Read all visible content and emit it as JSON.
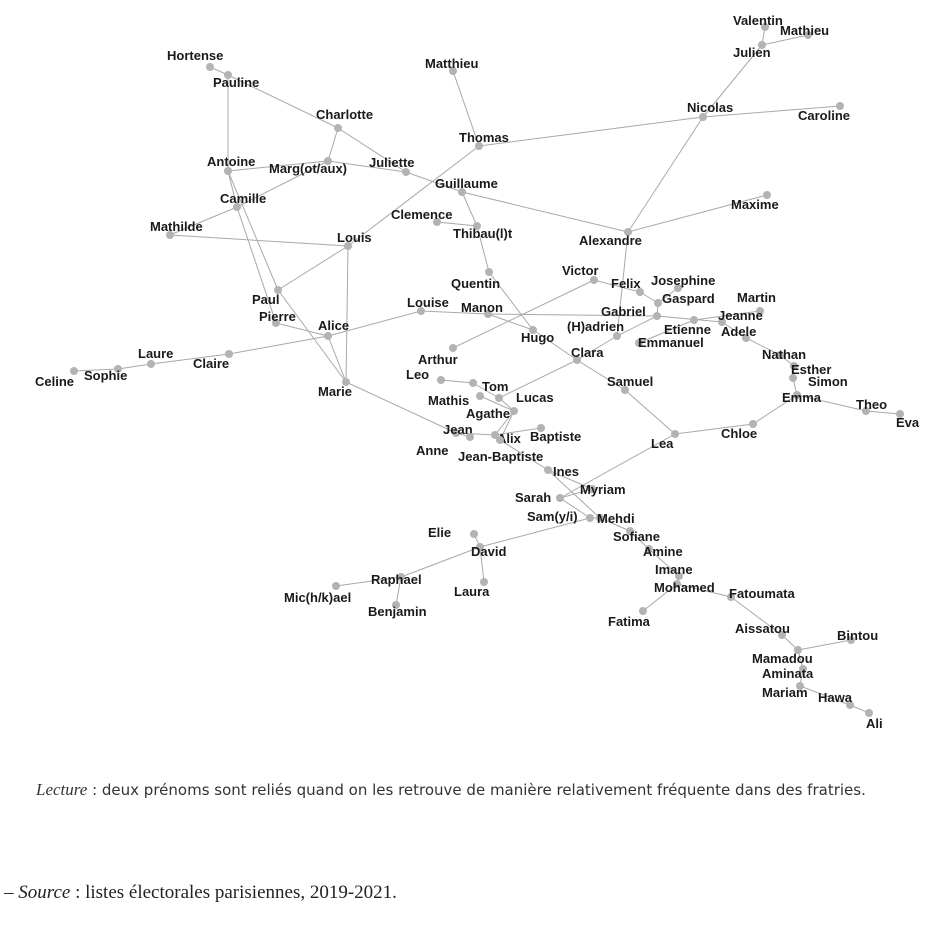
{
  "nodes": [
    {
      "id": "Valentin",
      "label": "Valentin"
    },
    {
      "id": "Mathieu",
      "label": "Mathieu"
    },
    {
      "id": "Julien",
      "label": "Julien"
    },
    {
      "id": "Nicolas",
      "label": "Nicolas"
    },
    {
      "id": "Caroline",
      "label": "Caroline"
    },
    {
      "id": "Hortense",
      "label": "Hortense"
    },
    {
      "id": "Pauline",
      "label": "Pauline"
    },
    {
      "id": "Matthieu",
      "label": "Matthieu"
    },
    {
      "id": "Charlotte",
      "label": "Charlotte"
    },
    {
      "id": "Thomas",
      "label": "Thomas"
    },
    {
      "id": "Antoine",
      "label": "Antoine"
    },
    {
      "id": "Margot",
      "label": "Marg(ot/aux)"
    },
    {
      "id": "Juliette",
      "label": "Juliette"
    },
    {
      "id": "Guillaume",
      "label": "Guillaume"
    },
    {
      "id": "Camille",
      "label": "Camille"
    },
    {
      "id": "Maxime",
      "label": "Maxime"
    },
    {
      "id": "Mathilde",
      "label": "Mathilde"
    },
    {
      "id": "Clemence",
      "label": "Clemence"
    },
    {
      "id": "Louis",
      "label": "Louis"
    },
    {
      "id": "Thibault",
      "label": "Thibau(l)t"
    },
    {
      "id": "Alexandre",
      "label": "Alexandre"
    },
    {
      "id": "Quentin",
      "label": "Quentin"
    },
    {
      "id": "Victor",
      "label": "Victor"
    },
    {
      "id": "Felix",
      "label": "Felix"
    },
    {
      "id": "Josephine",
      "label": "Josephine"
    },
    {
      "id": "Gaspard",
      "label": "Gaspard"
    },
    {
      "id": "Martin",
      "label": "Martin"
    },
    {
      "id": "Paul",
      "label": "Paul"
    },
    {
      "id": "Louise",
      "label": "Louise"
    },
    {
      "id": "Manon",
      "label": "Manon"
    },
    {
      "id": "Gabriel",
      "label": "Gabriel"
    },
    {
      "id": "Jeanne",
      "label": "Jeanne"
    },
    {
      "id": "Pierre",
      "label": "Pierre"
    },
    {
      "id": "Alice",
      "label": "Alice"
    },
    {
      "id": "Etienne",
      "label": "Etienne"
    },
    {
      "id": "Adele",
      "label": "Adele"
    },
    {
      "id": "Hugo",
      "label": "Hugo"
    },
    {
      "id": "Hadrien",
      "label": "(H)adrien"
    },
    {
      "id": "Emmanuel",
      "label": "Emmanuel"
    },
    {
      "id": "Clara",
      "label": "Clara"
    },
    {
      "id": "Nathan",
      "label": "Nathan"
    },
    {
      "id": "Arthur",
      "label": "Arthur"
    },
    {
      "id": "Laure",
      "label": "Laure"
    },
    {
      "id": "Claire",
      "label": "Claire"
    },
    {
      "id": "Sophie",
      "label": "Sophie"
    },
    {
      "id": "Celine",
      "label": "Celine"
    },
    {
      "id": "Esther",
      "label": "Esther"
    },
    {
      "id": "Simon",
      "label": "Simon"
    },
    {
      "id": "Leo",
      "label": "Leo"
    },
    {
      "id": "Tom",
      "label": "Tom"
    },
    {
      "id": "Samuel",
      "label": "Samuel"
    },
    {
      "id": "Marie",
      "label": "Marie"
    },
    {
      "id": "Mathis",
      "label": "Mathis"
    },
    {
      "id": "Lucas",
      "label": "Lucas"
    },
    {
      "id": "Emma",
      "label": "Emma"
    },
    {
      "id": "Theo",
      "label": "Theo"
    },
    {
      "id": "Agathe",
      "label": "Agathe"
    },
    {
      "id": "Eva",
      "label": "Eva"
    },
    {
      "id": "Jean",
      "label": "Jean"
    },
    {
      "id": "Alix",
      "label": "Alix"
    },
    {
      "id": "Baptiste",
      "label": "Baptiste"
    },
    {
      "id": "Chloe",
      "label": "Chloe"
    },
    {
      "id": "Lea",
      "label": "Lea"
    },
    {
      "id": "Anne",
      "label": "Anne"
    },
    {
      "id": "JeanBaptiste",
      "label": "Jean-Baptiste"
    },
    {
      "id": "Ines",
      "label": "Ines"
    },
    {
      "id": "Myriam",
      "label": "Myriam"
    },
    {
      "id": "Sarah",
      "label": "Sarah"
    },
    {
      "id": "Samy",
      "label": "Sam(y/i)"
    },
    {
      "id": "Mehdi",
      "label": "Mehdi"
    },
    {
      "id": "Elie",
      "label": "Elie"
    },
    {
      "id": "Sofiane",
      "label": "Sofiane"
    },
    {
      "id": "David",
      "label": "David"
    },
    {
      "id": "Amine",
      "label": "Amine"
    },
    {
      "id": "Imane",
      "label": "Imane"
    },
    {
      "id": "Raphael",
      "label": "Raphael"
    },
    {
      "id": "Mohamed",
      "label": "Mohamed"
    },
    {
      "id": "Fatoumata",
      "label": "Fatoumata"
    },
    {
      "id": "Laura",
      "label": "Laura"
    },
    {
      "id": "Michael",
      "label": "Mic(h/k)ael"
    },
    {
      "id": "Benjamin",
      "label": "Benjamin"
    },
    {
      "id": "Fatima",
      "label": "Fatima"
    },
    {
      "id": "Aissatou",
      "label": "Aissatou"
    },
    {
      "id": "Bintou",
      "label": "Bintou"
    },
    {
      "id": "Mamadou",
      "label": "Mamadou"
    },
    {
      "id": "Aminata",
      "label": "Aminata"
    },
    {
      "id": "Mariam",
      "label": "Mariam"
    },
    {
      "id": "Hawa",
      "label": "Hawa"
    },
    {
      "id": "Ali",
      "label": "Ali"
    }
  ],
  "edges": [
    [
      "Valentin",
      "Julien"
    ],
    [
      "Mathieu",
      "Julien"
    ],
    [
      "Julien",
      "Nicolas"
    ],
    [
      "Nicolas",
      "Caroline"
    ],
    [
      "Nicolas",
      "Thomas"
    ],
    [
      "Nicolas",
      "Alexandre"
    ],
    [
      "Hortense",
      "Pauline"
    ],
    [
      "Pauline",
      "Charlotte"
    ],
    [
      "Pauline",
      "Antoine"
    ],
    [
      "Charlotte",
      "Margot"
    ],
    [
      "Charlotte",
      "Juliette"
    ],
    [
      "Matthieu",
      "Thomas"
    ],
    [
      "Thomas",
      "Louis"
    ],
    [
      "Antoine",
      "Margot"
    ],
    [
      "Antoine",
      "Camille"
    ],
    [
      "Antoine",
      "Paul"
    ],
    [
      "Margot",
      "Juliette"
    ],
    [
      "Margot",
      "Camille"
    ],
    [
      "Juliette",
      "Guillaume"
    ],
    [
      "Guillaume",
      "Alexandre"
    ],
    [
      "Guillaume",
      "Thibault"
    ],
    [
      "Camille",
      "Pierre"
    ],
    [
      "Camille",
      "Mathilde"
    ],
    [
      "Mathilde",
      "Louis"
    ],
    [
      "Clemence",
      "Thibault"
    ],
    [
      "Thibault",
      "Quentin"
    ],
    [
      "Maxime",
      "Alexandre"
    ],
    [
      "Alexandre",
      "Hadrien"
    ],
    [
      "Louis",
      "Paul"
    ],
    [
      "Louis",
      "Marie"
    ],
    [
      "Quentin",
      "Hugo"
    ],
    [
      "Victor",
      "Felix"
    ],
    [
      "Victor",
      "Arthur"
    ],
    [
      "Felix",
      "Gaspard"
    ],
    [
      "Josephine",
      "Gaspard"
    ],
    [
      "Gaspard",
      "Gabriel"
    ],
    [
      "Martin",
      "Etienne"
    ],
    [
      "Paul",
      "Marie"
    ],
    [
      "Louise",
      "Manon"
    ],
    [
      "Louise",
      "Alice"
    ],
    [
      "Manon",
      "Hugo"
    ],
    [
      "Manon",
      "Gabriel"
    ],
    [
      "Gabriel",
      "Hadrien"
    ],
    [
      "Gabriel",
      "Jeanne"
    ],
    [
      "Jeanne",
      "Adele"
    ],
    [
      "Pierre",
      "Alice"
    ],
    [
      "Alice",
      "Claire"
    ],
    [
      "Alice",
      "Marie"
    ],
    [
      "Etienne",
      "Emmanuel"
    ],
    [
      "Adele",
      "Nathan"
    ],
    [
      "Hugo",
      "Clara"
    ],
    [
      "Hadrien",
      "Clara"
    ],
    [
      "Clara",
      "Lucas"
    ],
    [
      "Clara",
      "Samuel"
    ],
    [
      "Nathan",
      "Esther"
    ],
    [
      "Laure",
      "Claire"
    ],
    [
      "Laure",
      "Sophie"
    ],
    [
      "Sophie",
      "Celine"
    ],
    [
      "Esther",
      "Simon"
    ],
    [
      "Simon",
      "Emma"
    ],
    [
      "Leo",
      "Tom"
    ],
    [
      "Tom",
      "Lucas"
    ],
    [
      "Samuel",
      "Lea"
    ],
    [
      "Marie",
      "Jean"
    ],
    [
      "Mathis",
      "Agathe"
    ],
    [
      "Lucas",
      "Agathe"
    ],
    [
      "Emma",
      "Theo"
    ],
    [
      "Emma",
      "Chloe"
    ],
    [
      "Theo",
      "Eva"
    ],
    [
      "Agathe",
      "Alix"
    ],
    [
      "Agathe",
      "JeanBaptiste"
    ],
    [
      "Jean",
      "Alix"
    ],
    [
      "Alix",
      "Baptiste"
    ],
    [
      "Chloe",
      "Lea"
    ],
    [
      "Lea",
      "Sarah"
    ],
    [
      "Anne",
      "Jean"
    ],
    [
      "JeanBaptiste",
      "Ines"
    ],
    [
      "Ines",
      "Myriam"
    ],
    [
      "Ines",
      "Mehdi"
    ],
    [
      "Sarah",
      "Samy"
    ],
    [
      "Sarah",
      "Myriam"
    ],
    [
      "Samy",
      "Mehdi"
    ],
    [
      "Samy",
      "David"
    ],
    [
      "Mehdi",
      "Sofiane"
    ],
    [
      "Elie",
      "David"
    ],
    [
      "Sofiane",
      "Amine"
    ],
    [
      "David",
      "Raphael"
    ],
    [
      "David",
      "Laura"
    ],
    [
      "Amine",
      "Imane"
    ],
    [
      "Imane",
      "Mohamed"
    ],
    [
      "Raphael",
      "Michael"
    ],
    [
      "Raphael",
      "Benjamin"
    ],
    [
      "Mohamed",
      "Fatoumata"
    ],
    [
      "Mohamed",
      "Fatima"
    ],
    [
      "Fatoumata",
      "Aissatou"
    ],
    [
      "Aissatou",
      "Mamadou"
    ],
    [
      "Bintou",
      "Mamadou"
    ],
    [
      "Mamadou",
      "Aminata"
    ],
    [
      "Aminata",
      "Mariam"
    ],
    [
      "Mariam",
      "Hawa"
    ],
    [
      "Hawa",
      "Ali"
    ]
  ],
  "caption": {
    "reading_label": "Lecture",
    "reading_text": " : deux prénoms sont reliés quand on les retrouve de manière relativement fréquente dans des fratries."
  },
  "source": {
    "dash": "– ",
    "label": "Source",
    "text": " : listes électorales parisiennes, 2019-2021."
  }
}
